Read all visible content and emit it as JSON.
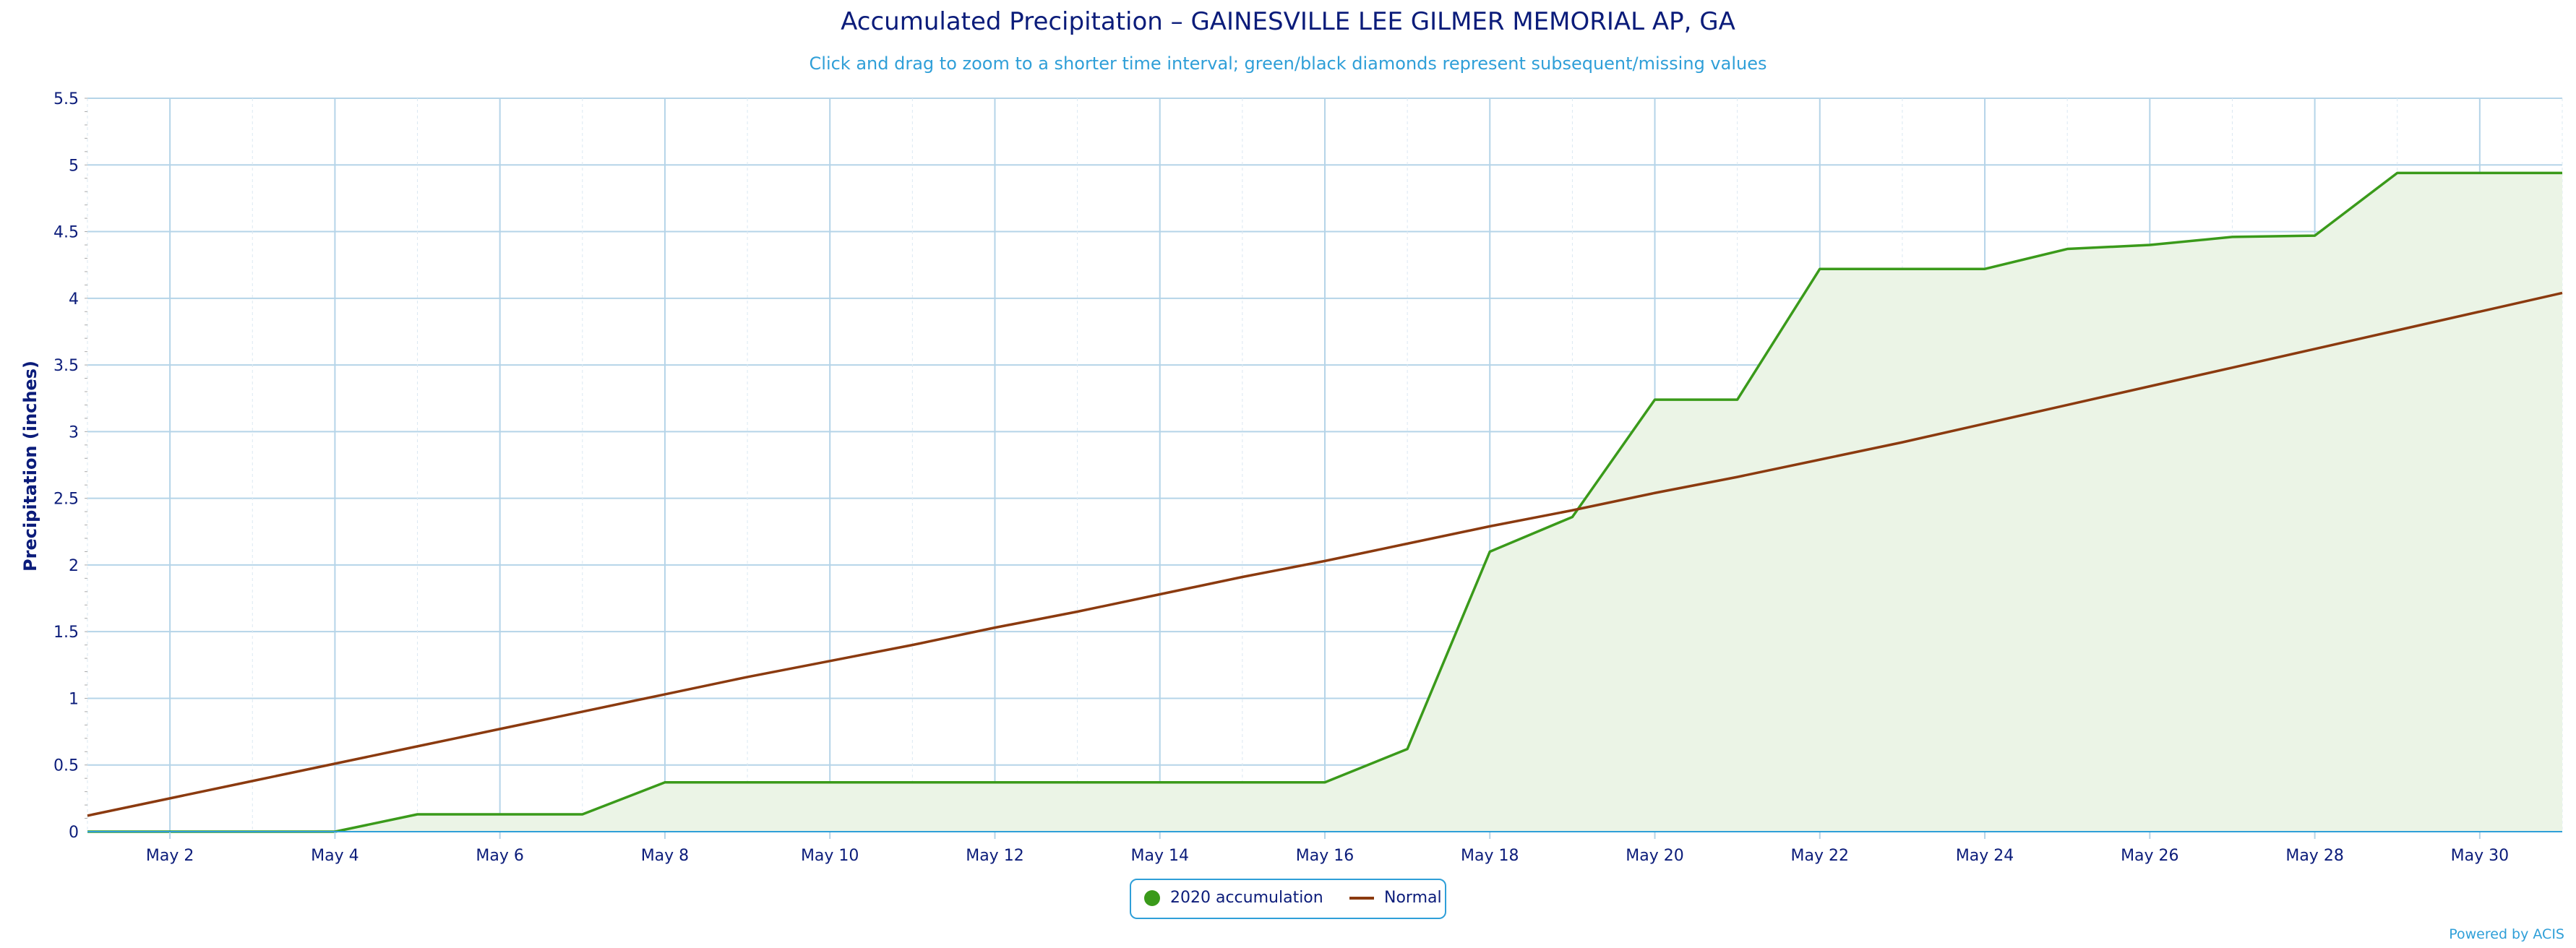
{
  "chart_data": {
    "type": "area",
    "title": "Accumulated Precipitation – GAINESVILLE LEE GILMER MEMORIAL AP, GA",
    "subtitle": "Click and drag to zoom to a shorter time interval; green/black diamonds represent subsequent/missing values",
    "ylabel": "Precipitation (inches)",
    "xlabel": "",
    "ylim": [
      0,
      5.5
    ],
    "yticks": [
      "0",
      "0.5",
      "1",
      "1.5",
      "2",
      "2.5",
      "3",
      "3.5",
      "4",
      "4.5",
      "5",
      "5.5"
    ],
    "xlim": [
      1,
      31
    ],
    "xticks": [
      {
        "day": 2,
        "label": "May 2"
      },
      {
        "day": 4,
        "label": "May 4"
      },
      {
        "day": 6,
        "label": "May 6"
      },
      {
        "day": 8,
        "label": "May 8"
      },
      {
        "day": 10,
        "label": "May 10"
      },
      {
        "day": 12,
        "label": "May 12"
      },
      {
        "day": 14,
        "label": "May 14"
      },
      {
        "day": 16,
        "label": "May 16"
      },
      {
        "day": 18,
        "label": "May 18"
      },
      {
        "day": 20,
        "label": "May 20"
      },
      {
        "day": 22,
        "label": "May 22"
      },
      {
        "day": 24,
        "label": "May 24"
      },
      {
        "day": 26,
        "label": "May 26"
      },
      {
        "day": 28,
        "label": "May 28"
      },
      {
        "day": 30,
        "label": "May 30"
      }
    ],
    "x": [
      1,
      2,
      3,
      4,
      5,
      6,
      7,
      8,
      9,
      10,
      11,
      12,
      13,
      14,
      15,
      16,
      17,
      18,
      19,
      20,
      21,
      22,
      23,
      24,
      25,
      26,
      27,
      28,
      29,
      30,
      31
    ],
    "series": [
      {
        "name": "2020 accumulation",
        "color": "#3a9a1a",
        "fill": "#ebf4e6",
        "values": [
          0,
          0,
          0,
          0,
          0.13,
          0.13,
          0.13,
          0.37,
          0.37,
          0.37,
          0.37,
          0.37,
          0.37,
          0.37,
          0.37,
          0.37,
          0.62,
          2.1,
          2.36,
          3.24,
          3.24,
          4.22,
          4.22,
          4.22,
          4.37,
          4.4,
          4.46,
          4.47,
          4.94,
          4.94,
          4.94
        ]
      },
      {
        "name": "Normal",
        "color": "#8b3a0f",
        "values": [
          0.12,
          0.25,
          0.38,
          0.51,
          0.64,
          0.77,
          0.9,
          1.03,
          1.16,
          1.28,
          1.4,
          1.53,
          1.65,
          1.78,
          1.91,
          2.03,
          2.16,
          2.29,
          2.41,
          2.54,
          2.66,
          2.79,
          2.92,
          3.06,
          3.2,
          3.34,
          3.48,
          3.62,
          3.76,
          3.9,
          4.04
        ]
      }
    ],
    "grid": true,
    "legend_position": "bottom-center",
    "credit": "Powered by ACIS"
  }
}
